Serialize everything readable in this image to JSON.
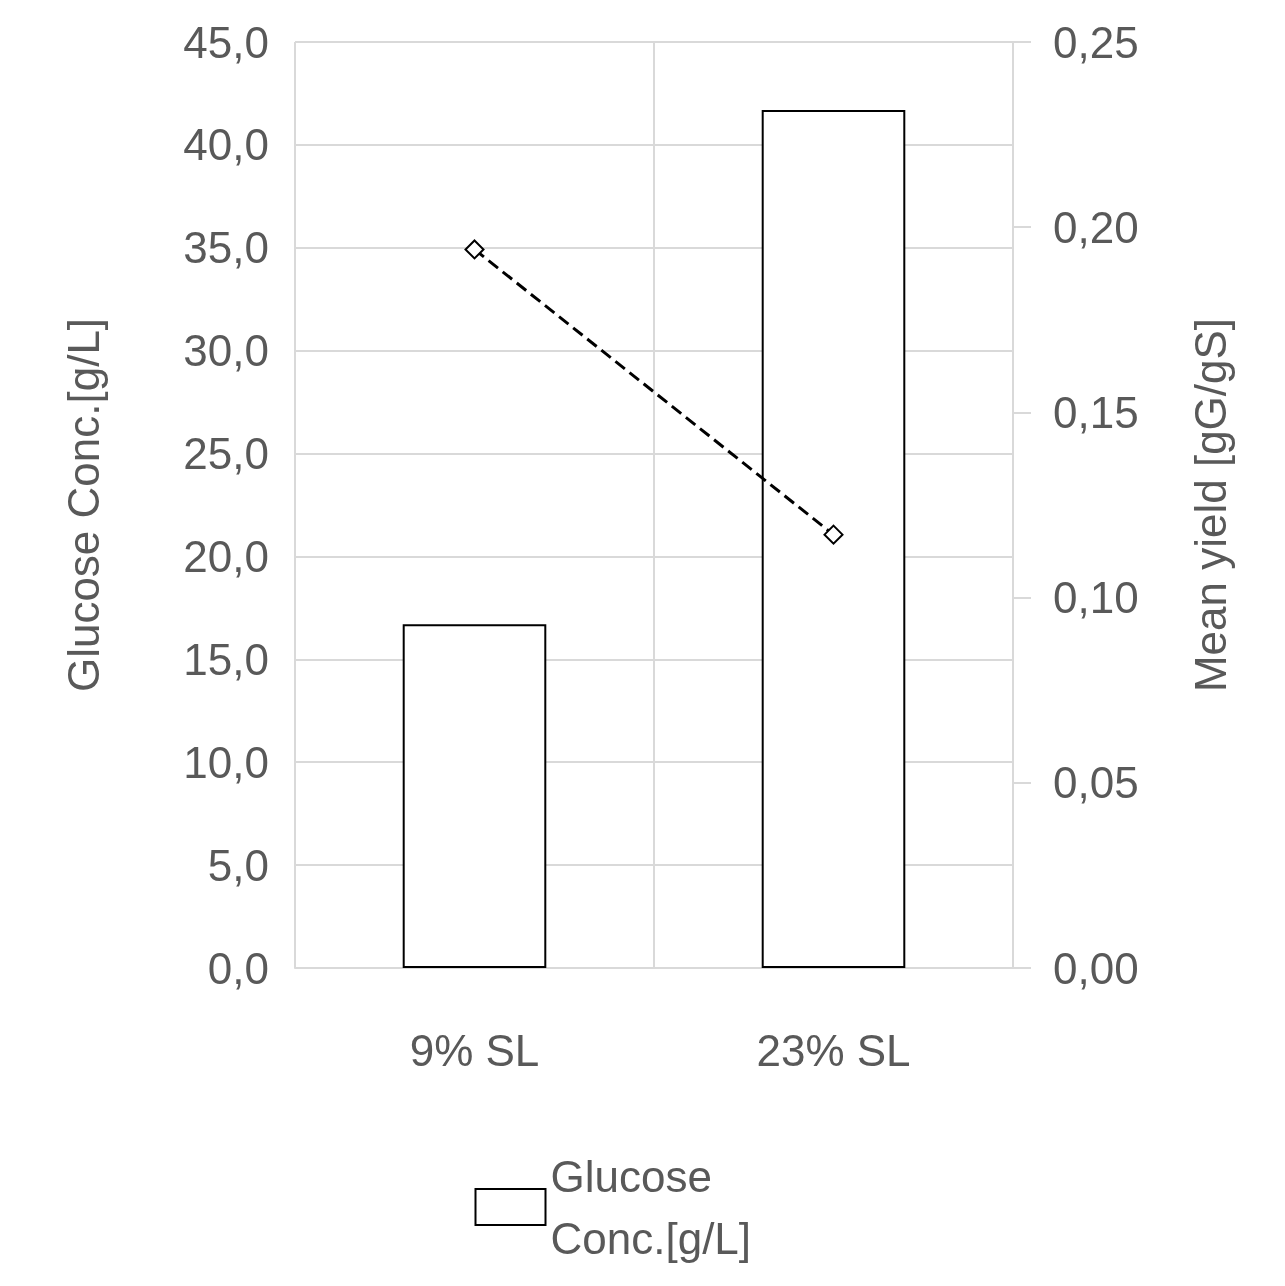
{
  "chart_data": {
    "type": "bar",
    "ylabel": "Glucose Conc.[g/L]",
    "y2label": "Mean yield [gG/gS]",
    "categories": [
      "9% SL",
      "23% SL"
    ],
    "series": [
      {
        "name": "Glucose Conc.[g/L]",
        "color": "#ffffff",
        "values": [
          16.7,
          41.7
        ]
      },
      {
        "type": "line",
        "axis": "y2",
        "color": "#000000",
        "marker": "diamond",
        "line_style": "dashed",
        "values": [
          0.194,
          0.117
        ]
      }
    ],
    "ylim": [
      0,
      45
    ],
    "yticks": [
      {
        "value": 0,
        "label": "0,0"
      },
      {
        "value": 5,
        "label": "5,0"
      },
      {
        "value": 10,
        "label": "10,0"
      },
      {
        "value": 15,
        "label": "15,0"
      },
      {
        "value": 20,
        "label": "20,0"
      },
      {
        "value": 25,
        "label": "25,0"
      },
      {
        "value": 30,
        "label": "30,0"
      },
      {
        "value": 35,
        "label": "35,0"
      },
      {
        "value": 40,
        "label": "40,0"
      },
      {
        "value": 45,
        "label": "45,0"
      }
    ],
    "y2lim": [
      0,
      0.25
    ],
    "y2ticks": [
      {
        "value": 0,
        "label": "0,00"
      },
      {
        "value": 0.05,
        "label": "0,05"
      },
      {
        "value": 0.1,
        "label": "0,10"
      },
      {
        "value": 0.15,
        "label": "0,15"
      },
      {
        "value": 0.2,
        "label": "0,20"
      },
      {
        "value": 0.25,
        "label": "0,25"
      }
    ],
    "grid": true,
    "legend": "bottom"
  }
}
